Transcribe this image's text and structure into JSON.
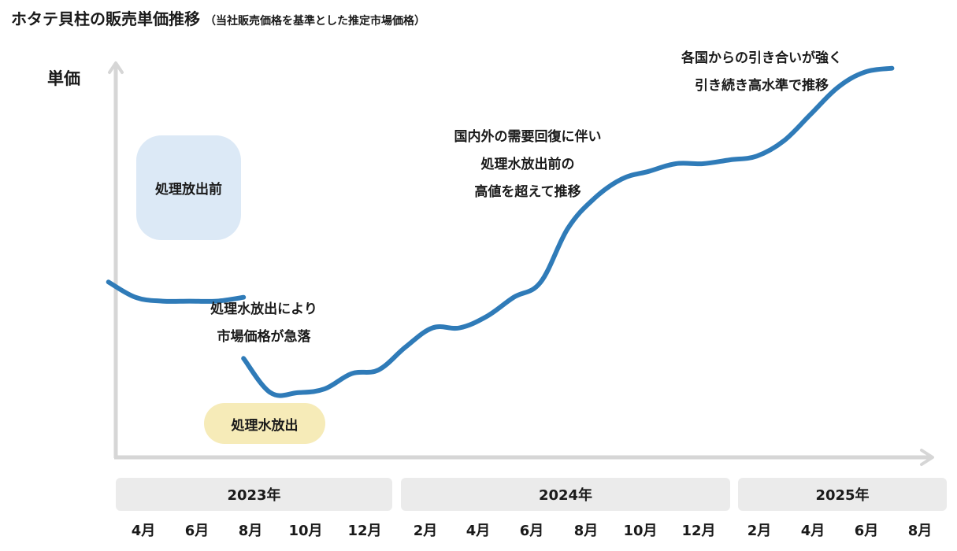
{
  "title": "ホタテ貝柱の販売単価推移",
  "subtitle": "（当社販売価格を基準とした推定市場価格）",
  "chart_data": {
    "type": "line",
    "title": "ホタテ貝柱の販売単価推移",
    "subtitle": "（当社販売価格を基準とした推定市場価格）",
    "ylabel": "単価",
    "xlabel": "",
    "y_ticks_shown": false,
    "grid": false,
    "x_years": [
      {
        "label": "2023年",
        "months": [
          "4月",
          "6月",
          "8月",
          "10月",
          "12月"
        ]
      },
      {
        "label": "2024年",
        "months": [
          "2月",
          "4月",
          "6月",
          "8月",
          "10月",
          "12月"
        ]
      },
      {
        "label": "2025年",
        "months": [
          "2月",
          "4月",
          "6月",
          "8月"
        ]
      }
    ],
    "series": [
      {
        "color": "#2f7bb8",
        "note": "relative unit price (no scale shown)",
        "segments": [
          {
            "x": [
              "2023-03",
              "2023-04",
              "2023-05",
              "2023-06",
              "2023-07",
              "2023-08"
            ],
            "y": [
              42,
              38,
              37,
              37,
              37,
              38
            ]
          },
          {
            "x": [
              "2023-08",
              "2023-09",
              "2023-10",
              "2023-11",
              "2023-12",
              "2024-01",
              "2024-02",
              "2024-03",
              "2024-04",
              "2024-05",
              "2024-06",
              "2024-07",
              "2024-08",
              "2024-09",
              "2024-10",
              "2024-11",
              "2024-12",
              "2025-01",
              "2025-02",
              "2025-03",
              "2025-04",
              "2025-05",
              "2025-06",
              "2025-07",
              "2025-08"
            ],
            "y": [
              22,
              13,
              13,
              14,
              18,
              19,
              25,
              30,
              30,
              33,
              38,
              42,
              56,
              64,
              69,
              71,
              73,
              73,
              74,
              75,
              79,
              86,
              93,
              97,
              98
            ]
          }
        ]
      }
    ],
    "annotations": [
      {
        "lines": [
          "処理水放出により",
          "市場価格が急落"
        ]
      },
      {
        "lines": [
          "国内外の需要回復に伴い",
          "処理水放出前の",
          "高値を超えて推移"
        ]
      },
      {
        "lines": [
          "各国からの引き合いが強く",
          "引き続き高水準で推移"
        ]
      }
    ],
    "badges": [
      "処理放出前",
      "処理水放出"
    ]
  }
}
